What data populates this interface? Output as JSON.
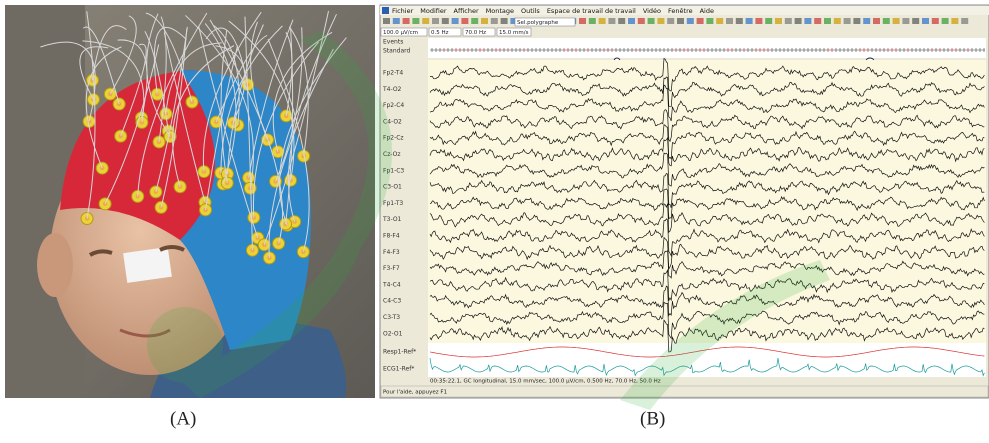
{
  "panel_a": {
    "caption": "(A)"
  },
  "panel_b": {
    "caption": "(B)",
    "menu": [
      "Fichier",
      "Modifier",
      "Afficher",
      "Montage",
      "Outils",
      "Espace de travail de travail",
      "Vidéo",
      "Fenêtre",
      "Aide"
    ],
    "toolbar": {
      "montage": "Sel.polygraphe",
      "sensitivity": "100.0 µV/cm",
      "low_filter": "0.5 Hz",
      "high_filter": "70.0 Hz",
      "speed": "15.0 mm/s"
    },
    "rows": [
      "Events",
      "Standard"
    ],
    "channels": [
      "Fp2-T4",
      "T4-O2",
      "Fp2-C4",
      "C4-O2",
      "Fp2-Cz",
      "Cz-Oz",
      "Fp1-C3",
      "C3-O1",
      "Fp1-T3",
      "T3-O1",
      "F8-F4",
      "F4-F3",
      "F3-F7",
      "T4-C4",
      "C4-C3",
      "C3-T3",
      "O2-O1",
      "Resp1-Ref*",
      "ECG1-Ref*"
    ],
    "info": "00:35:22.1, GC longitudinal, 15.0 mm/sec, 100.0 µV/cm, 0.500 Hz, 70.0 Hz, 50.0 Hz",
    "status": "Pour l'aide, appuyez F1"
  }
}
